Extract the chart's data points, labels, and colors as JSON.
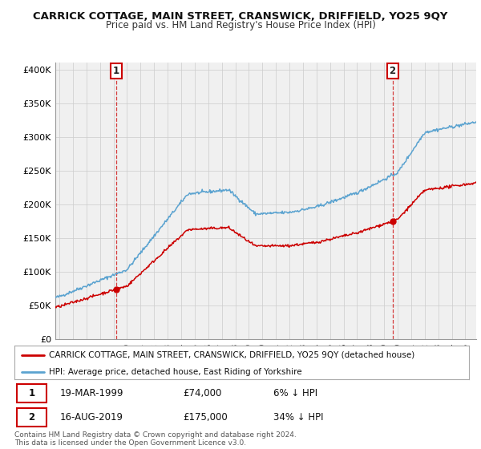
{
  "title": "CARRICK COTTAGE, MAIN STREET, CRANSWICK, DRIFFIELD, YO25 9QY",
  "subtitle": "Price paid vs. HM Land Registry's House Price Index (HPI)",
  "hpi_color": "#5ba3d0",
  "price_color": "#cc0000",
  "vline_color": "#cc0000",
  "background_color": "#ffffff",
  "chart_bg": "#f0f0f0",
  "grid_color": "#cccccc",
  "ylim": [
    0,
    410000
  ],
  "yticks": [
    0,
    50000,
    100000,
    150000,
    200000,
    250000,
    300000,
    350000,
    400000
  ],
  "ytick_labels": [
    "£0",
    "£50K",
    "£100K",
    "£150K",
    "£200K",
    "£250K",
    "£300K",
    "£350K",
    "£400K"
  ],
  "sale1_date": 1999.21,
  "sale1_price": 74000,
  "sale1_label": "1",
  "sale2_date": 2019.62,
  "sale2_price": 175000,
  "sale2_label": "2",
  "legend_line1": "CARRICK COTTAGE, MAIN STREET, CRANSWICK, DRIFFIELD, YO25 9QY (detached house)",
  "legend_line2": "HPI: Average price, detached house, East Riding of Yorkshire",
  "table_date1": "19-MAR-1999",
  "table_price1": "£74,000",
  "table_pct1": "6% ↓ HPI",
  "table_date2": "16-AUG-2019",
  "table_price2": "£175,000",
  "table_pct2": "34% ↓ HPI",
  "footnote": "Contains HM Land Registry data © Crown copyright and database right 2024.\nThis data is licensed under the Open Government Licence v3.0.",
  "xstart": 1994.7,
  "xend": 2025.8
}
